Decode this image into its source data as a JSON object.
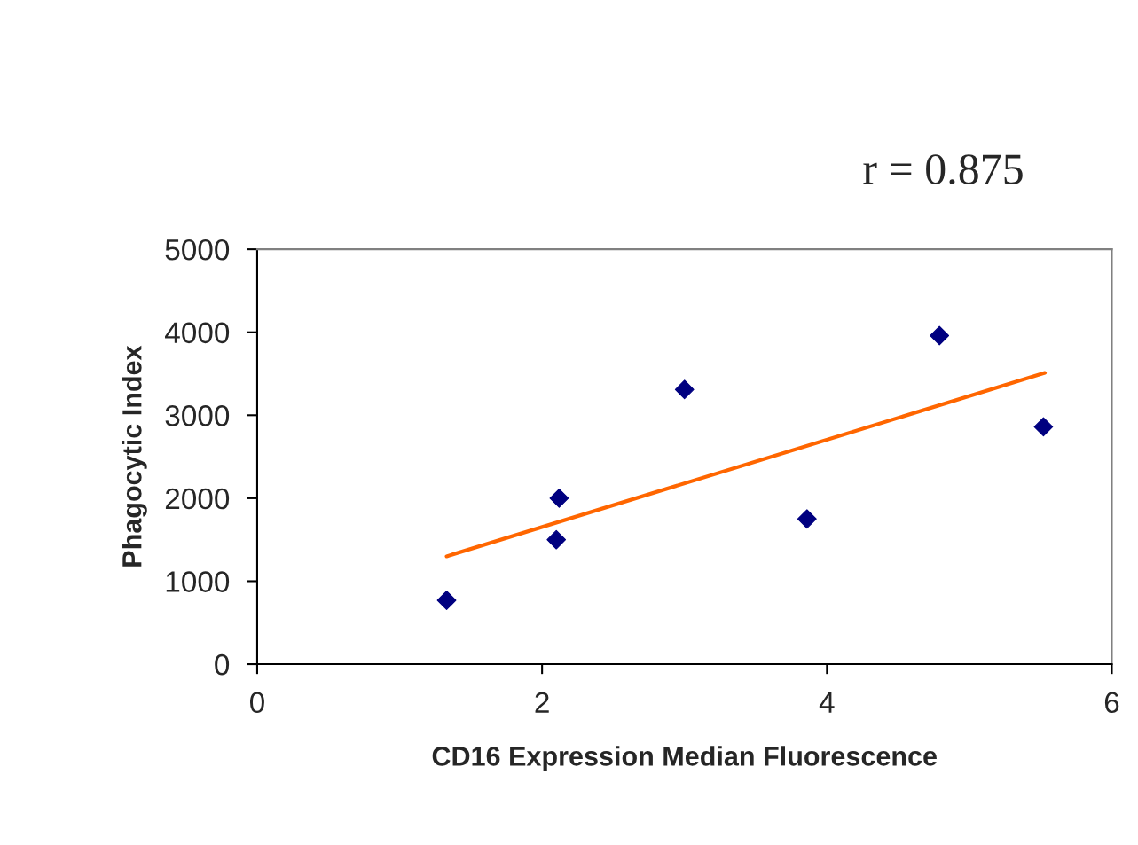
{
  "chart_data": {
    "type": "scatter",
    "xlabel": "CD16 Expression Median Fluorescence",
    "ylabel": "Phagocytic Index",
    "annotations": [
      "r = 0.875"
    ],
    "series": [
      {
        "color": "#000080",
        "marker": "diamond",
        "x": [
          1.33,
          2.1,
          2.12,
          3.0,
          3.86,
          4.79,
          5.52
        ],
        "values": [
          770,
          1500,
          2000,
          3310,
          1750,
          3960,
          2860
        ]
      },
      {
        "type": "line",
        "color": "#ff6600",
        "marker": "none",
        "line_style": "solid",
        "x": [
          1.33,
          5.53
        ],
        "values": [
          1300,
          3510
        ]
      }
    ],
    "xlim": [
      0,
      6
    ],
    "xticks": [
      0,
      2,
      4,
      6
    ],
    "ylim": [
      0,
      5000
    ],
    "yticks": [
      0,
      1000,
      2000,
      3000,
      4000,
      5000
    ],
    "grid": false,
    "legend": false
  }
}
